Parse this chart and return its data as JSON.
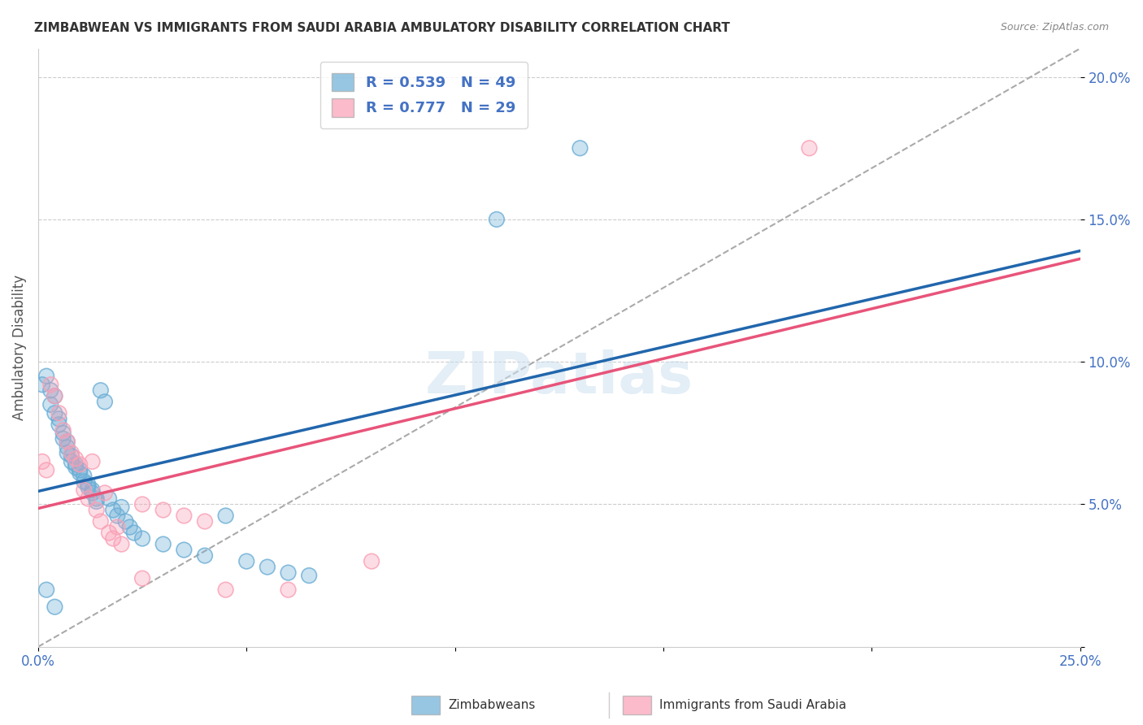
{
  "title": "ZIMBABWEAN VS IMMIGRANTS FROM SAUDI ARABIA AMBULATORY DISABILITY CORRELATION CHART",
  "source": "Source: ZipAtlas.com",
  "ylabel": "Ambulatory Disability",
  "xlim": [
    0.0,
    0.25
  ],
  "ylim": [
    0.0,
    0.21
  ],
  "legend_r1": "R = 0.539",
  "legend_n1": "N = 49",
  "legend_r2": "R = 0.777",
  "legend_n2": "N = 29",
  "color_blue": "#6baed6",
  "color_pink": "#fa9fb5",
  "color_blue_line": "#2166ac",
  "color_pink_line": "#e8547a",
  "color_dashed": "#aaaaaa",
  "color_axis_label": "#4472c4",
  "watermark": "ZIPatlas",
  "zimbabwean_x": [
    0.001,
    0.002,
    0.003,
    0.003,
    0.004,
    0.004,
    0.005,
    0.005,
    0.006,
    0.006,
    0.007,
    0.007,
    0.007,
    0.008,
    0.008,
    0.009,
    0.009,
    0.01,
    0.01,
    0.011,
    0.011,
    0.012,
    0.012,
    0.013,
    0.013,
    0.014,
    0.014,
    0.015,
    0.016,
    0.017,
    0.018,
    0.019,
    0.02,
    0.021,
    0.022,
    0.023,
    0.025,
    0.03,
    0.035,
    0.04,
    0.045,
    0.05,
    0.055,
    0.06,
    0.065,
    0.11,
    0.13,
    0.002,
    0.004
  ],
  "zimbabwean_y": [
    0.092,
    0.095,
    0.085,
    0.09,
    0.088,
    0.082,
    0.08,
    0.078,
    0.075,
    0.073,
    0.072,
    0.07,
    0.068,
    0.067,
    0.065,
    0.064,
    0.063,
    0.062,
    0.061,
    0.06,
    0.058,
    0.057,
    0.056,
    0.055,
    0.054,
    0.052,
    0.051,
    0.09,
    0.086,
    0.052,
    0.048,
    0.046,
    0.049,
    0.044,
    0.042,
    0.04,
    0.038,
    0.036,
    0.034,
    0.032,
    0.046,
    0.03,
    0.028,
    0.026,
    0.025,
    0.15,
    0.175,
    0.02,
    0.014
  ],
  "saudi_x": [
    0.001,
    0.002,
    0.003,
    0.004,
    0.005,
    0.006,
    0.007,
    0.008,
    0.009,
    0.01,
    0.011,
    0.012,
    0.013,
    0.014,
    0.015,
    0.016,
    0.017,
    0.018,
    0.019,
    0.02,
    0.025,
    0.03,
    0.035,
    0.04,
    0.045,
    0.06,
    0.08,
    0.185,
    0.025
  ],
  "saudi_y": [
    0.065,
    0.062,
    0.092,
    0.088,
    0.082,
    0.076,
    0.072,
    0.068,
    0.066,
    0.064,
    0.055,
    0.052,
    0.065,
    0.048,
    0.044,
    0.054,
    0.04,
    0.038,
    0.042,
    0.036,
    0.05,
    0.048,
    0.046,
    0.044,
    0.02,
    0.02,
    0.03,
    0.175,
    0.024
  ]
}
